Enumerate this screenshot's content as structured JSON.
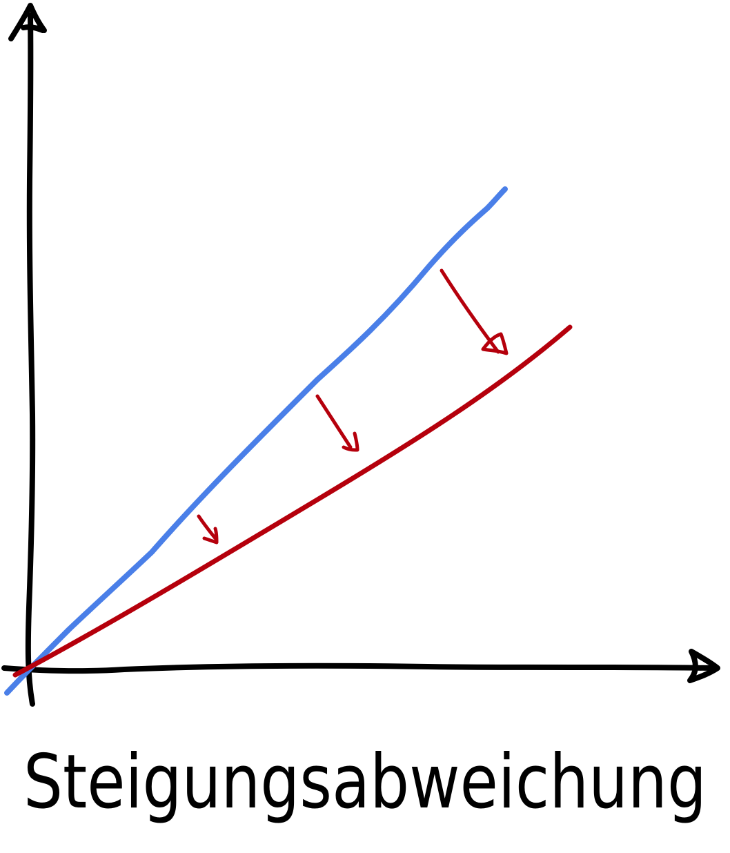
{
  "diagram": {
    "caption": "Steigungsabweichung",
    "colors": {
      "axes": "#000000",
      "reference_line": "#4a7fe8",
      "deviating_line": "#b5000c",
      "shift_arrows": "#b5000c"
    },
    "icons": {
      "y_axis_head": "arrow-up-icon",
      "x_axis_head": "arrow-right-icon",
      "shift_arrows": "arrow-down-right-icon"
    }
  }
}
